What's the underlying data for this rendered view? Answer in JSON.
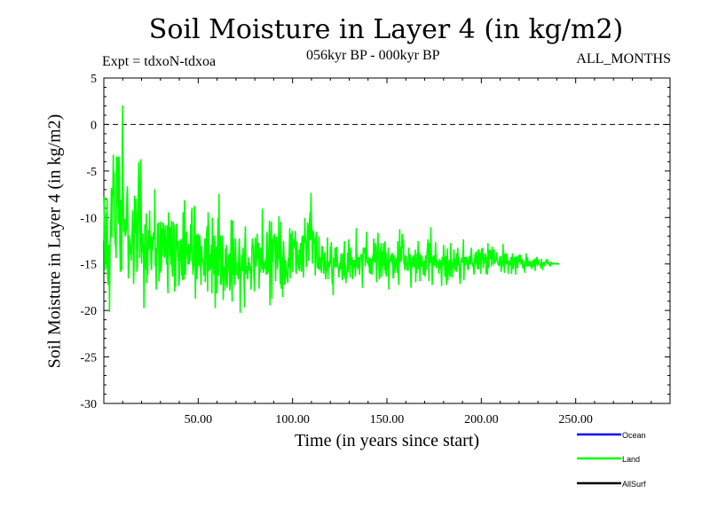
{
  "chart_data": {
    "type": "line",
    "title": "Soil Moisture in Layer 4 (in kg/m2)",
    "subtitle_left": "Expt = tdxoN-tdxoa",
    "subtitle_center": "056kyr BP - 000kyr BP",
    "subtitle_right": "ALL_MONTHS",
    "xlabel": "Time (in years since start)",
    "ylabel": "Soil Moisture in Layer 4 (in kg/m2)",
    "xlim": [
      0,
      300
    ],
    "ylim": [
      -30,
      5
    ],
    "x_ticks": [
      50,
      100,
      150,
      200,
      250
    ],
    "x_tick_labels": [
      "50.00",
      "100.00",
      "150.00",
      "200.00",
      "250.00"
    ],
    "y_ticks": [
      5,
      0,
      -5,
      -10,
      -15,
      -20,
      -25,
      -30
    ],
    "y_tick_labels": [
      "5",
      "0",
      "-5",
      "-10",
      "-15",
      "-20",
      "-25",
      "-30"
    ],
    "reference_line": 0,
    "legend_placement": "bottom-right",
    "series": [
      {
        "name": "Ocean",
        "label": "Ocean",
        "color": "#0000ff",
        "values": []
      },
      {
        "name": "Land",
        "label": "Land",
        "color": "#00ff00",
        "x_start": 0.0,
        "x_step": 0.25,
        "values": [
          -12.5,
          -7.8,
          -15.6,
          -11.6,
          -14.9,
          -9.6,
          -15.5,
          -8.0,
          -16.3,
          -17.2,
          -13.3,
          -13.0,
          -20.1,
          -13.4,
          -11.4,
          -10.2,
          -6.9,
          -12.1,
          -9.0,
          -7.6,
          -3.3,
          -7.6,
          -5.1,
          -11.5,
          -12.9,
          -13.0,
          -14.3,
          -3.5,
          -8.6,
          -7.7,
          -3.5,
          -10.6,
          -3.5,
          -4.4,
          -12.8,
          -15.8,
          -8.2,
          -8.6,
          -15.6,
          -2.0,
          2.0,
          -7.1,
          -11.5,
          -10.5,
          -10.2,
          -11.7,
          -12.0,
          -11.5,
          -10.8,
          -7.5,
          -6.7,
          -11.2,
          -16.5,
          -15.6,
          -12.0,
          -12.6,
          -13.9,
          -13.0,
          -14.6,
          -12.2,
          -11.6,
          -9.3,
          -12.6,
          -17.1,
          -15.3,
          -7.7,
          -9.4,
          -11.6,
          -8.0,
          -9.6,
          -15.8,
          -15.2,
          -11.4,
          -7.5,
          -4.1,
          -7.9,
          -14.3,
          -11.7,
          -3.8,
          -7.4,
          -14.9,
          -12.3,
          -11.8,
          -13.7,
          -13.0,
          -19.7,
          -16.1,
          -10.8,
          -12.1,
          -15.5,
          -9.6,
          -17.0,
          -14.5,
          -16.1,
          -11.4,
          -11.7,
          -13.4,
          -9.3,
          -13.0,
          -12.1,
          -15.0,
          -15.6,
          -12.1,
          -13.5,
          -12.7,
          -11.7,
          -12.1,
          -12.3,
          -7.0,
          -15.2,
          -13.3,
          -17.7,
          -13.4,
          -13.9,
          -10.7,
          -11.3,
          -10.6,
          -16.8,
          -15.3,
          -15.9,
          -10.5,
          -15.7,
          -15.2,
          -11.3,
          -14.1,
          -10.6,
          -10.7,
          -12.2,
          -14.3,
          -12.5,
          -10.9,
          -14.1,
          -12.5,
          -15.0,
          -10.9,
          -16.9,
          -18.1,
          -9.5,
          -11.5,
          -11.1,
          -14.1,
          -11.1,
          -15.0,
          -10.4,
          -13.3,
          -15.9,
          -16.3,
          -10.5,
          -12.1,
          -10.8,
          -17.9,
          -16.5,
          -17.4,
          -11.7,
          -10.7,
          -13.3,
          -12.5,
          -14.6,
          -12.6,
          -17.3,
          -16.6,
          -15.0,
          -12.4,
          -13.0,
          -13.7,
          -16.2,
          -12.3,
          -16.7,
          -9.5,
          -9.5,
          -16.6,
          -8.2,
          -11.2,
          -16.1,
          -12.9,
          -11.6,
          -14.0,
          -13.8,
          -15.0,
          -12.9,
          -13.8,
          -15.0,
          -13.2,
          -14.6,
          -10.8,
          -13.7,
          -9.5,
          -9.0,
          -14.9,
          -16.1,
          -15.5,
          -14.5,
          -8.8,
          -10.9,
          -18.7,
          -14.9,
          -11.9,
          -16.6,
          -15.5,
          -12.0,
          -11.8,
          -15.2,
          -14.6,
          -12.0,
          -12.5,
          -15.2,
          -17.2,
          -13.1,
          -14.1,
          -14.7,
          -14.8,
          -14.9,
          -16.2,
          -15.1,
          -12.3,
          -16.9,
          -15.8,
          -12.6,
          -11.6,
          -11.0,
          -17.9,
          -9.5,
          -11.0,
          -15.7,
          -14.0,
          -14.2,
          -15.5,
          -14.5,
          -13.0,
          -18.1,
          -10.1,
          -13.0,
          -14.6,
          -16.1,
          -12.0,
          -12.7,
          -19.7,
          -13.3,
          -13.2,
          -18.1,
          -17.8,
          -12.9,
          -10.1,
          -16.2,
          -7.5,
          -14.4,
          -12.5,
          -12.0,
          -17.2,
          -17.1,
          -15.2,
          -12.0,
          -13.5,
          -18.8,
          -15.3,
          -17.8,
          -15.5,
          -15.4,
          -13.4,
          -17.2,
          -13.0,
          -17.5,
          -16.5,
          -15.7,
          -14.1,
          -15.2,
          -13.9,
          -17.8,
          -16.7,
          -14.1,
          -10.3,
          -16.9,
          -19.0,
          -10.4,
          -16.1,
          -12.3,
          -15.3,
          -17.2,
          -16.9,
          -12.3,
          -15.2,
          -14.9,
          -16.1,
          -16.2,
          -16.1,
          -16.6,
          -14.1,
          -12.3,
          -14.7,
          -20.2,
          -16.8,
          -16.4,
          -14.1,
          -15.5,
          -15.7,
          -13.3,
          -14.0,
          -16.2,
          -19.6,
          -12.6,
          -11.0,
          -16.0,
          -15.4,
          -15.3,
          -16.4,
          -16.6,
          -14.3,
          -15.5,
          -15.6,
          -14.9,
          -15.9,
          -15.3,
          -17.7,
          -16.3,
          -13.3,
          -12.3,
          -13.5,
          -13.0,
          -16.2,
          -17.9,
          -15.6,
          -12.2,
          -14.3,
          -15.2,
          -14.1,
          -11.8,
          -14.3,
          -14.0,
          -12.8,
          -17.6,
          -14.2,
          -15.9,
          -13.3,
          -13.5,
          -14.4,
          -15.5,
          -9.1,
          -12.8,
          -15.9,
          -15.6,
          -15.5,
          -14.8,
          -14.9,
          -14.5,
          -16.1,
          -12.4,
          -11.6,
          -16.0,
          -14.7,
          -15.8,
          -12.5,
          -10.4,
          -19.4,
          -13.1,
          -12.8,
          -10.5,
          -18.7,
          -12.4,
          -14.7,
          -13.1,
          -12.0,
          -12.6,
          -11.8,
          -13.7,
          -16.8,
          -13.6,
          -12.1,
          -12.7,
          -15.5,
          -13.5,
          -14.4,
          -9.9,
          -14.2,
          -15.0,
          -17.1,
          -10.5,
          -17.6,
          -16.0,
          -14.3,
          -18.5,
          -14.1,
          -12.6,
          -14.4,
          -17.1,
          -17.2,
          -14.6,
          -14.9,
          -15.6,
          -16.5,
          -16.6,
          -17.0,
          -14.4,
          -15.3,
          -13.3,
          -11.2,
          -16.5,
          -11.8,
          -12.5,
          -14.5,
          -11.5,
          -15.8,
          -12.7,
          -13.2,
          -12.4,
          -13.2,
          -13.1,
          -11.5,
          -15.8,
          -16.0,
          -12.7,
          -13.6,
          -14.6,
          -15.2,
          -15.5,
          -13.5,
          -15.7,
          -13.7,
          -12.8,
          -13.7,
          -15.8,
          -12.2,
          -12.0,
          -14.7,
          -16.4,
          -12.0,
          -12.7,
          -10.1,
          -12.0,
          -13.0,
          -15.3,
          -14.1,
          -12.5,
          -10.6,
          -11.4,
          -14.6,
          -11.5,
          -10.6,
          -9.5,
          -12.4,
          -7.4,
          -10.6,
          -11.4,
          -14.9,
          -13.2,
          -11.5,
          -12.0,
          -12.7,
          -12.4,
          -16.2,
          -12.7,
          -11.6,
          -11.8,
          -15.3,
          -15.0,
          -15.5,
          -14.6,
          -12.1,
          -15.6,
          -14.7,
          -14.3,
          -15.1,
          -15.9,
          -13.1,
          -13.2,
          -13.5,
          -14.9,
          -16.0,
          -15.0,
          -13.8,
          -14.6,
          -16.6,
          -15.8,
          -15.7,
          -14.3,
          -12.2,
          -16.6,
          -14.8,
          -14.8,
          -15.3,
          -15.2,
          -13.2,
          -14.9,
          -12.7,
          -15.0,
          -17.1,
          -15.5,
          -18.3,
          -14.4,
          -14.5,
          -15.3,
          -13.3,
          -13.3,
          -15.3,
          -15.2,
          -13.2,
          -14.8,
          -15.3,
          -15.4,
          -16.4,
          -15.7,
          -14.9,
          -15.6,
          -14.8,
          -13.9,
          -14.3,
          -16.5,
          -16.7,
          -13.9,
          -16.2,
          -14.3,
          -12.6,
          -16.5,
          -15.1,
          -17.0,
          -16.2,
          -16.0,
          -15.7,
          -13.8,
          -15.8,
          -12.4,
          -14.2,
          -14.6,
          -16.4,
          -13.3,
          -14.5,
          -15.1,
          -14.3,
          -16.6,
          -14.6,
          -15.4,
          -15.0,
          -14.6,
          -15.0,
          -16.3,
          -15.1,
          -11.2,
          -15.3,
          -14.0,
          -15.1,
          -15.5,
          -14.3,
          -14.5,
          -16.1,
          -14.5,
          -14.4,
          -14.0,
          -14.0,
          -14.8,
          -17.5,
          -14.3,
          -13.3,
          -13.8,
          -13.5,
          -13.3,
          -15.2,
          -14.2,
          -12.9,
          -11.6,
          -14.7,
          -14.9,
          -14.7,
          -15.2,
          -14.3,
          -15.9,
          -14.5,
          -16.0,
          -14.4,
          -14.8,
          -16.1,
          -15.6,
          -14.1,
          -14.6,
          -12.3,
          -13.6,
          -14.8,
          -14.6,
          -12.8,
          -13.2,
          -16.9,
          -14.0,
          -14.4,
          -11.7,
          -14.2,
          -15.4,
          -16.6,
          -16.4,
          -14.3,
          -13.3,
          -12.8,
          -16.3,
          -15.5,
          -13.7,
          -15.1,
          -12.8,
          -14.9,
          -15.6,
          -12.6,
          -16.0,
          -13.8,
          -16.3,
          -14.6,
          -15.5,
          -14.2,
          -13.3,
          -17.7,
          -14.9,
          -14.8,
          -14.5,
          -14.2,
          -14.7,
          -13.9,
          -15.0,
          -13.9,
          -16.5,
          -16.5,
          -14.1,
          -15.9,
          -15.6,
          -15.1,
          -14.4,
          -14.5,
          -15.2,
          -15.9,
          -12.6,
          -16.1,
          -17.2,
          -14.8,
          -11.3,
          -14.8,
          -13.6,
          -13.2,
          -14.6,
          -11.8,
          -12.5,
          -13.2,
          -12.5,
          -14.9,
          -15.1,
          -15.6,
          -14.1,
          -15.0,
          -14.2,
          -15.6,
          -15.0,
          -15.2,
          -15.7,
          -13.3,
          -14.6,
          -15.0,
          -14.0,
          -15.4,
          -17.5,
          -15.1,
          -15.4,
          -14.3,
          -15.2,
          -14.3,
          -14.1,
          -15.3,
          -14.5,
          -13.5,
          -16.9,
          -14.6,
          -15.9,
          -13.9,
          -15.0,
          -12.6,
          -15.5,
          -14.7,
          -13.8,
          -16.8,
          -14.9,
          -14.1,
          -15.2,
          -14.2,
          -15.2,
          -14.8,
          -16.1,
          -16.1,
          -14.7,
          -14.9,
          -16.3,
          -14.1,
          -15.6,
          -14.8,
          -13.8,
          -13.1,
          -12.4,
          -13.9,
          -16.8,
          -12.8,
          -14.9,
          -14.7,
          -11.1,
          -13.9,
          -15.2,
          -17.2,
          -14.3,
          -14.6,
          -14.1,
          -15.2,
          -14.9,
          -14.5,
          -12.7,
          -14.3,
          -15.4,
          -14.6,
          -15.1,
          -14.8,
          -15.3,
          -16.0,
          -14.7,
          -14.5,
          -15.4,
          -14.7,
          -15.9,
          -17.3,
          -14.3,
          -15.0,
          -15.1,
          -13.0,
          -13.9,
          -14.9,
          -16.3,
          -14.4,
          -14.2,
          -17.2,
          -15.6,
          -13.4,
          -16.7,
          -15.7,
          -15.8,
          -14.6,
          -16.1,
          -16.3,
          -12.8,
          -15.0,
          -14.5,
          -16.4,
          -14.9,
          -15.4,
          -14.7,
          -13.5,
          -15.1,
          -15.7,
          -14.5,
          -15.6,
          -13.9,
          -15.8,
          -15.0,
          -13.3,
          -14.6,
          -15.1,
          -14.4,
          -16.3,
          -17.1,
          -16.4,
          -14.9,
          -14.4,
          -14.5,
          -14.8,
          -14.0,
          -12.4,
          -16.7,
          -15.2,
          -14.3,
          -14.4,
          -15.1,
          -14.3,
          -14.7,
          -14.3,
          -15.4,
          -15.6,
          -15.4,
          -14.4,
          -14.2,
          -14.9,
          -15.0,
          -13.7,
          -13.3,
          -14.5,
          -15.2,
          -15.0,
          -14.9,
          -16.1,
          -15.8,
          -14.4,
          -13.9,
          -15.0,
          -13.7,
          -14.5,
          -14.6,
          -15.5,
          -13.5,
          -15.5,
          -13.5,
          -14.9,
          -13.8,
          -14.6,
          -16.0,
          -14.1,
          -13.4,
          -14.5,
          -13.3,
          -15.4,
          -14.8,
          -14.9,
          -14.0,
          -14.5,
          -13.9,
          -16.0,
          -15.2,
          -14.3,
          -16.1,
          -12.8,
          -15.4,
          -15.3,
          -13.6,
          -13.5,
          -14.1,
          -14.5,
          -13.6,
          -15.2,
          -13.2,
          -14.4,
          -13.5,
          -15.0,
          -13.5,
          -14.7,
          -14.9,
          -14.7,
          -14.5,
          -13.8,
          -14.0,
          -14.7,
          -14.7,
          -15.1,
          -14.8,
          -15.2,
          -14.4,
          -14.2,
          -14.2,
          -15.8,
          -15.2,
          -15.3,
          -14.5,
          -12.9,
          -14.7,
          -15.2,
          -15.9,
          -13.9,
          -14.0,
          -14.5,
          -15.0,
          -13.9,
          -14.6,
          -14.6,
          -16.0,
          -14.7,
          -15.1,
          -14.9,
          -15.1,
          -15.0,
          -14.3,
          -16.0,
          -15.3,
          -13.9,
          -14.4,
          -15.5,
          -14.8,
          -14.4,
          -14.3,
          -14.8,
          -16.1,
          -14.2,
          -14.6,
          -15.1,
          -15.4,
          -14.1,
          -14.8,
          -14.7,
          -14.3,
          -14.0,
          -14.4,
          -15.0,
          -14.8,
          -14.5,
          -15.1,
          -15.4,
          -14.6,
          -15.5,
          -15.1,
          -15.9,
          -14.8,
          -15.0,
          -13.9,
          -15.2,
          -14.3,
          -14.4,
          -15.2,
          -15.1,
          -14.8,
          -14.7,
          -15.2,
          -15.1,
          -15.3,
          -14.7,
          -15.5,
          -15.3,
          -15.2,
          -14.6,
          -15.2,
          -14.9,
          -14.5,
          -15.7,
          -14.6,
          -15.0,
          -14.3,
          -14.3,
          -15.2,
          -14.7,
          -14.6,
          -14.9,
          -15.0,
          -15.1,
          -15.0,
          -15.4,
          -14.5,
          -14.9,
          -14.9,
          -15.6,
          -15.0,
          -14.8,
          -15.0,
          -14.9,
          -15.2,
          -14.7,
          -14.8,
          -14.8,
          -14.5,
          -15.0,
          -14.6,
          -14.9,
          -15.0,
          -14.9,
          -15.2,
          -15.0,
          -15.2,
          -14.8,
          -14.9,
          -15.0,
          -14.9,
          -14.9,
          -15.0,
          -15.0,
          -15.0,
          -14.9,
          -15.0,
          -15.0,
          -15.0,
          -15.0,
          -14.9,
          -15.0,
          -15.0,
          -15.0,
          -15.0
        ]
      },
      {
        "name": "AllSurf",
        "label": "AllSurf",
        "color": "#000000",
        "values": []
      }
    ]
  }
}
